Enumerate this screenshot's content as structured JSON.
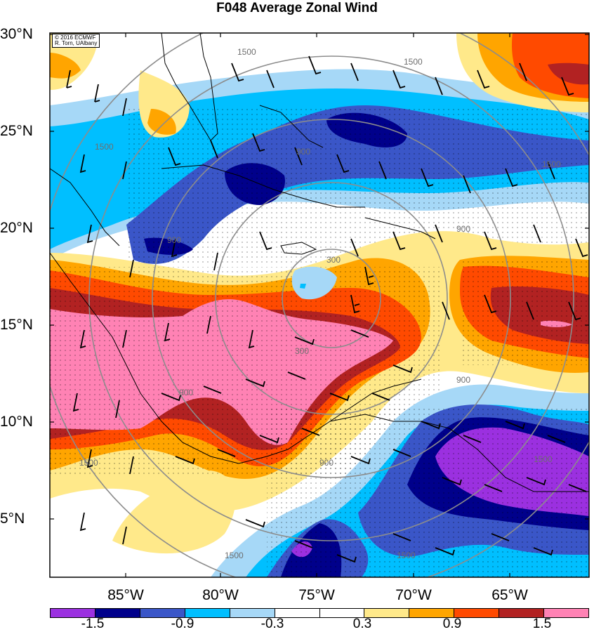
{
  "title": "F048 Average Zonal Wind",
  "copyright": [
    "© 2016 ECMWF",
    "R. Torn, UAlbany"
  ],
  "lat_labels": [
    "30°N",
    "25°N",
    "20°N",
    "15°N",
    "10°N",
    "5°N"
  ],
  "lon_labels": [
    "85°W",
    "80°W",
    "75°W",
    "70°W",
    "65°W"
  ],
  "colorbar": {
    "colors": [
      "#9b30e0",
      "#00008b",
      "#3a56c8",
      "#00bfff",
      "#a6d8f7",
      "#ffffff",
      "#ffffff",
      "#ffe98a",
      "#ffa500",
      "#ff4a00",
      "#b22222",
      "#ff82b4"
    ],
    "labels": [
      "-1.5",
      "-0.9",
      "-0.3",
      "0.3",
      "0.9",
      "1.5"
    ]
  },
  "range_ring_labels": [
    "300",
    "900",
    "1500"
  ],
  "legend_colors": {
    "strong_negative": "#9b30e0",
    "negative": "#00008b",
    "moderate_negative": "#3a56c8",
    "weak_negative": "#00bfff",
    "slight_negative": "#a6d8f7",
    "neutral": "#ffffff",
    "slight_positive": "#ffe98a",
    "weak_positive": "#ffa500",
    "moderate_positive": "#ff4a00",
    "positive": "#b22222",
    "strong_positive": "#ff82b4"
  }
}
